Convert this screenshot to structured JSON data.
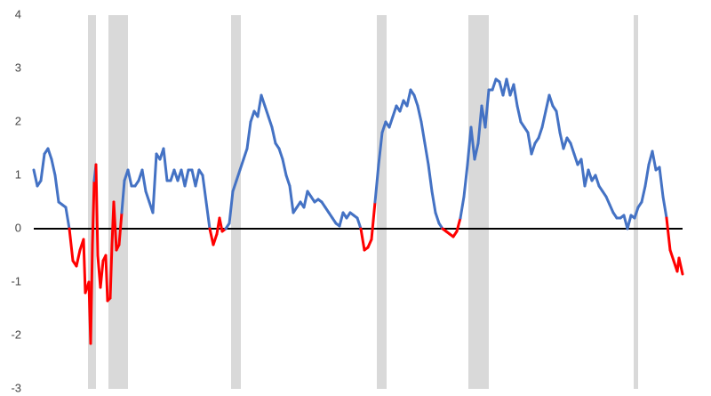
{
  "chart_data": {
    "type": "line",
    "x": [
      38,
      42,
      46,
      50,
      54,
      58,
      62,
      66,
      70,
      74,
      78,
      82,
      86,
      90,
      94,
      96,
      100,
      102,
      104,
      106,
      108,
      110,
      113,
      116,
      119,
      121,
      124,
      126,
      128,
      131,
      134,
      137,
      140,
      144,
      148,
      152,
      156,
      160,
      164,
      168,
      172,
      176,
      180,
      184,
      188,
      192,
      196,
      200,
      204,
      208,
      212,
      216,
      220,
      224,
      228,
      232,
      236,
      240,
      244,
      247,
      250,
      254,
      258,
      262,
      266,
      270,
      274,
      278,
      282,
      286,
      290,
      294,
      298,
      302,
      306,
      310,
      314,
      318,
      322,
      326,
      330,
      334,
      338,
      342,
      346,
      350,
      354,
      358,
      362,
      366,
      370,
      374,
      378,
      382,
      386,
      390,
      394,
      398,
      402,
      406,
      410,
      414,
      418,
      422,
      426,
      430,
      434,
      438,
      442,
      446,
      450,
      454,
      458,
      462,
      466,
      470,
      474,
      478,
      482,
      486,
      490,
      494,
      498,
      502,
      506,
      510,
      514,
      518,
      522,
      526,
      530,
      534,
      538,
      542,
      546,
      550,
      554,
      558,
      562,
      566,
      570,
      574,
      578,
      582,
      586,
      590,
      594,
      598,
      602,
      606,
      610,
      614,
      618,
      622,
      626,
      630,
      634,
      638,
      642,
      646,
      650,
      654,
      658,
      662,
      666,
      670,
      674,
      678,
      682,
      686,
      690,
      694,
      698,
      702,
      706,
      710,
      714,
      718,
      722,
      726,
      730,
      734,
      738,
      742,
      746,
      750,
      754,
      758,
      762,
      764,
      768
    ],
    "series": [
      {
        "color": "#4472c4",
        "negative_color": "#ff0000",
        "values": [
          1.1,
          0.8,
          0.9,
          1.4,
          1.5,
          1.3,
          1.0,
          0.5,
          0.45,
          0.4,
          0.0,
          -0.6,
          -0.7,
          -0.4,
          -0.2,
          -1.2,
          -1.0,
          -2.15,
          -0.3,
          0.9,
          1.2,
          -0.5,
          -1.1,
          -0.6,
          -0.5,
          -1.35,
          -1.3,
          -0.3,
          0.5,
          -0.4,
          -0.3,
          0.3,
          0.9,
          1.1,
          0.8,
          0.8,
          0.9,
          1.1,
          0.7,
          0.5,
          0.3,
          1.4,
          1.3,
          1.5,
          0.9,
          0.9,
          1.1,
          0.9,
          1.1,
          0.8,
          1.1,
          1.1,
          0.8,
          1.1,
          1.0,
          0.5,
          0.0,
          -0.3,
          -0.1,
          0.2,
          -0.05,
          0.0,
          0.1,
          0.7,
          0.9,
          1.1,
          1.3,
          1.5,
          2.0,
          2.2,
          2.1,
          2.5,
          2.3,
          2.1,
          1.9,
          1.6,
          1.5,
          1.3,
          1.0,
          0.8,
          0.3,
          0.4,
          0.5,
          0.4,
          0.7,
          0.6,
          0.5,
          0.55,
          0.5,
          0.4,
          0.3,
          0.2,
          0.1,
          0.05,
          0.3,
          0.2,
          0.3,
          0.25,
          0.2,
          0.0,
          -0.4,
          -0.35,
          -0.2,
          0.5,
          1.2,
          1.8,
          2.0,
          1.9,
          2.1,
          2.3,
          2.2,
          2.4,
          2.3,
          2.6,
          2.5,
          2.3,
          2.0,
          1.6,
          1.2,
          0.7,
          0.3,
          0.1,
          0.0,
          -0.05,
          -0.1,
          -0.15,
          -0.05,
          0.2,
          0.6,
          1.2,
          1.9,
          1.3,
          1.6,
          2.3,
          1.9,
          2.6,
          2.6,
          2.8,
          2.75,
          2.5,
          2.8,
          2.5,
          2.7,
          2.3,
          2.0,
          1.9,
          1.8,
          1.4,
          1.6,
          1.7,
          1.9,
          2.2,
          2.5,
          2.3,
          2.2,
          1.8,
          1.5,
          1.7,
          1.6,
          1.4,
          1.2,
          1.3,
          0.8,
          1.1,
          0.9,
          1.0,
          0.8,
          0.7,
          0.6,
          0.45,
          0.3,
          0.2,
          0.2,
          0.25,
          0.0,
          0.25,
          0.2,
          0.4,
          0.5,
          0.8,
          1.2,
          1.45,
          1.1,
          1.15,
          0.6,
          0.2,
          -0.4,
          -0.6,
          -0.8,
          -0.55,
          -0.85
        ]
      }
    ],
    "recessions": [
      [
        99,
        108
      ],
      [
        122,
        144
      ],
      [
        260,
        271
      ],
      [
        424,
        435
      ],
      [
        527,
        550
      ],
      [
        713,
        718
      ]
    ],
    "recession_color": "#d9d9d9",
    "xlim": [
      38,
      768
    ],
    "ylim": [
      -3,
      4
    ],
    "yticks": [
      -3,
      -2,
      -1,
      0,
      1,
      2,
      3,
      4
    ],
    "zero_line": true
  }
}
